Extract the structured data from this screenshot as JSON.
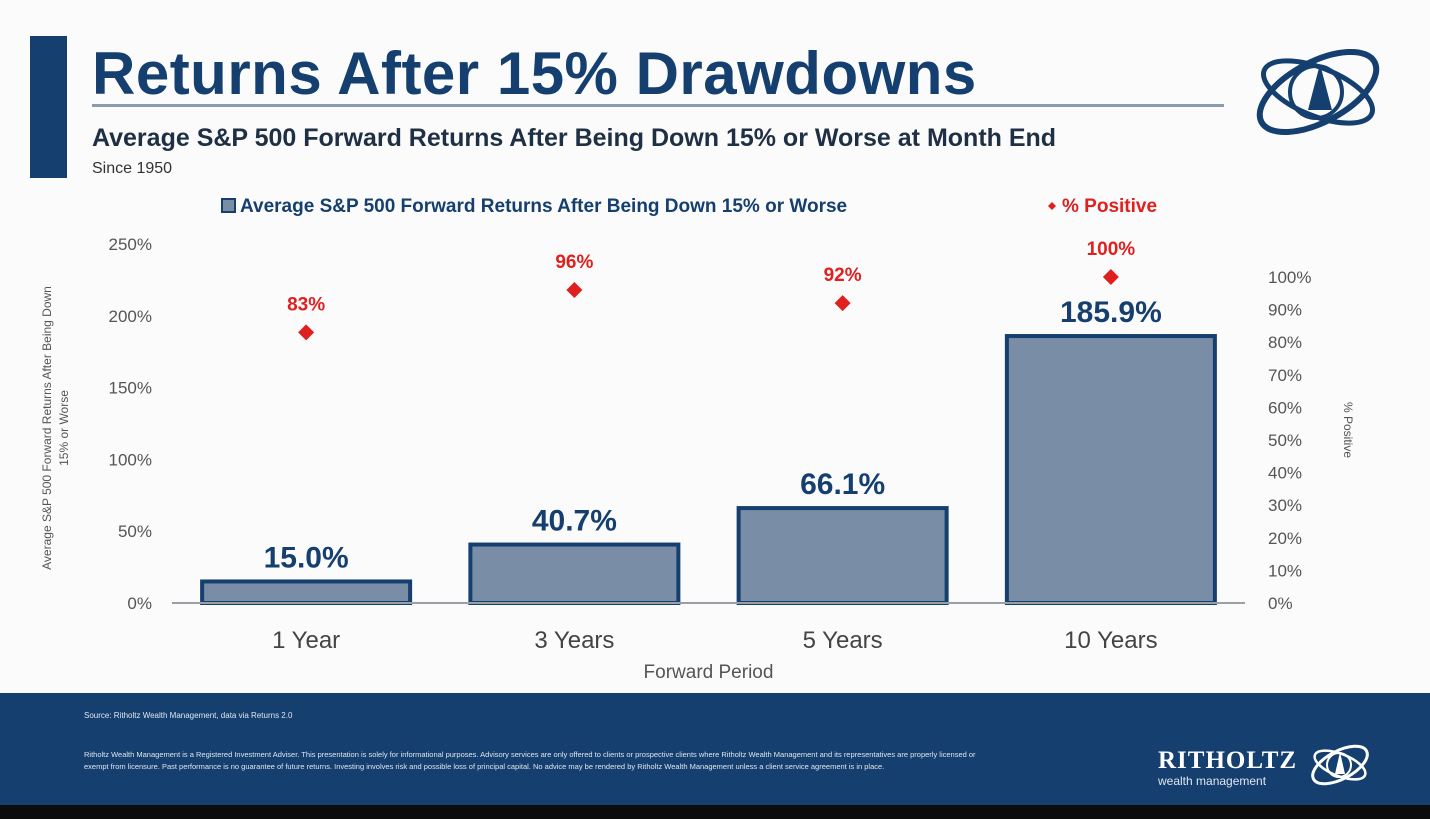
{
  "header": {
    "title": "Returns After 15% Drawdowns",
    "subtitle": "Average S&P 500 Forward Returns After Being Down 15% or Worse at Month End",
    "since": "Since 1950"
  },
  "footer": {
    "source": "Source: Ritholtz Wealth Management, data via Returns 2.0",
    "disclaimer": "Ritholtz Wealth Management is a Registered Investment Adviser. This presentation is solely for informational purposes. Advisory services are only offered to clients or prospective clients where Ritholtz Wealth Management and its representatives are properly licensed or exempt from licensure. Past performance is no guarantee of future returns. Investing involves risk and possible loss of principal capital. No advice may be rendered by Ritholtz Wealth Management unless a client service agreement is in place.",
    "brand_name": "RITHOLTZ",
    "brand_sub": "wealth management"
  },
  "colors": {
    "navy": "#153f6e",
    "bar_fill": "#7a8da6",
    "bar_stroke": "#153f6e",
    "marker": "#e01f1f"
  },
  "icons": {
    "logo": "globe-orbit-logo"
  },
  "chart_data": {
    "type": "bar",
    "categories": [
      "1 Year",
      "3 Years",
      "5 Years",
      "10 Years"
    ],
    "series": [
      {
        "name": "Average S&P 500 Forward Returns After Being Down 15% or Worse",
        "type": "bar",
        "axis": "left",
        "values": [
          15.0,
          40.7,
          66.1,
          185.9
        ],
        "labels": [
          "15.0%",
          "40.7%",
          "66.1%",
          "185.9%"
        ]
      },
      {
        "name": "% Positive",
        "type": "scatter",
        "marker": "diamond",
        "axis": "right",
        "values": [
          83,
          96,
          92,
          100
        ],
        "labels": [
          "83%",
          "96%",
          "92%",
          "100%"
        ]
      }
    ],
    "xlabel": "Forward Period",
    "ylabel": "Average S&P 500 Forward Returns After Being Down 15% or Worse",
    "y2label": "% Positive",
    "ylim": [
      0,
      250
    ],
    "y2lim": [
      0,
      100
    ],
    "yticks": [
      0,
      50,
      100,
      150,
      200,
      250
    ],
    "yticklabels": [
      "0%",
      "50%",
      "100%",
      "150%",
      "200%",
      "250%"
    ],
    "y2ticks": [
      0,
      10,
      20,
      30,
      40,
      50,
      60,
      70,
      80,
      90,
      100
    ],
    "y2ticklabels": [
      "0%",
      "10%",
      "20%",
      "30%",
      "40%",
      "50%",
      "60%",
      "70%",
      "80%",
      "90%",
      "100%"
    ],
    "legend_position": "top",
    "grid": false
  }
}
